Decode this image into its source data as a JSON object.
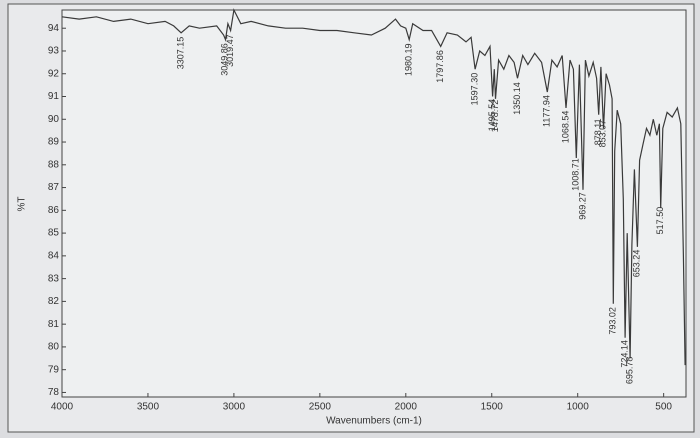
{
  "chart_data": {
    "type": "line",
    "xlabel": "Wavenumbers (cm-1)",
    "ylabel": "%T",
    "x": [
      4000,
      3900,
      3800,
      3700,
      3600,
      3500,
      3400,
      3350,
      3307,
      3260,
      3200,
      3100,
      3060,
      3049,
      3035,
      3019,
      3000,
      2960,
      2900,
      2800,
      2700,
      2600,
      2500,
      2400,
      2300,
      2200,
      2120,
      2060,
      2030,
      2000,
      1980,
      1960,
      1900,
      1850,
      1797,
      1760,
      1700,
      1650,
      1620,
      1597,
      1570,
      1540,
      1510,
      1495,
      1485,
      1478,
      1460,
      1430,
      1400,
      1370,
      1350,
      1320,
      1290,
      1250,
      1210,
      1177,
      1150,
      1120,
      1090,
      1068,
      1045,
      1025,
      1008,
      990,
      969,
      955,
      935,
      910,
      890,
      878,
      865,
      850,
      835,
      815,
      800,
      793,
      785,
      770,
      750,
      735,
      724,
      712,
      695,
      685,
      670,
      653,
      640,
      620,
      600,
      580,
      560,
      540,
      525,
      517,
      505,
      480,
      450,
      420,
      400,
      385,
      375
    ],
    "values": [
      94.5,
      94.4,
      94.5,
      94.3,
      94.4,
      94.2,
      94.3,
      94.1,
      93.8,
      94.1,
      94.0,
      94.1,
      93.7,
      93.5,
      94.2,
      93.9,
      94.8,
      94.2,
      94.3,
      94.1,
      94.0,
      94.0,
      93.9,
      93.9,
      93.8,
      93.7,
      94.0,
      94.4,
      94.1,
      94.0,
      93.5,
      94.2,
      93.9,
      93.9,
      93.2,
      93.8,
      93.7,
      93.4,
      93.6,
      92.2,
      93.0,
      92.8,
      93.2,
      91.0,
      92.2,
      90.9,
      92.6,
      92.2,
      92.8,
      92.5,
      91.8,
      92.8,
      92.4,
      92.9,
      92.5,
      91.2,
      92.6,
      92.3,
      92.8,
      90.5,
      92.6,
      92.2,
      88.3,
      92.4,
      86.9,
      92.6,
      91.9,
      92.5,
      91.8,
      90.2,
      92.3,
      89.6,
      92.0,
      91.5,
      90.9,
      81.9,
      88.6,
      90.4,
      89.8,
      86.5,
      80.4,
      85.0,
      79.5,
      84.5,
      87.8,
      84.4,
      88.2,
      88.9,
      89.6,
      89.3,
      90.0,
      89.3,
      89.8,
      86.1,
      89.6,
      90.3,
      90.1,
      90.5,
      89.8,
      84.0,
      79.2
    ],
    "color": "#3a3a3a",
    "annotations": [
      "3307.15",
      "3049.86",
      "3019.47",
      "1980.19",
      "1797.86",
      "1597.30",
      "1495.54",
      "1478.72",
      "1350.14",
      "1177.94",
      "1068.54",
      "1008.71",
      "969.27",
      "878.11",
      "853.07",
      "793.02",
      "724.14",
      "695.78",
      "653.24",
      "517.50"
    ],
    "xlim": [
      4000,
      370
    ],
    "xticks": [
      4000,
      3500,
      3000,
      2500,
      2000,
      1500,
      1000,
      500
    ],
    "ylim": [
      77.8,
      94.8
    ],
    "yticks": [
      78,
      79,
      80,
      81,
      82,
      83,
      84,
      85,
      86,
      87,
      88,
      89,
      90,
      91,
      92,
      93,
      94
    ]
  }
}
